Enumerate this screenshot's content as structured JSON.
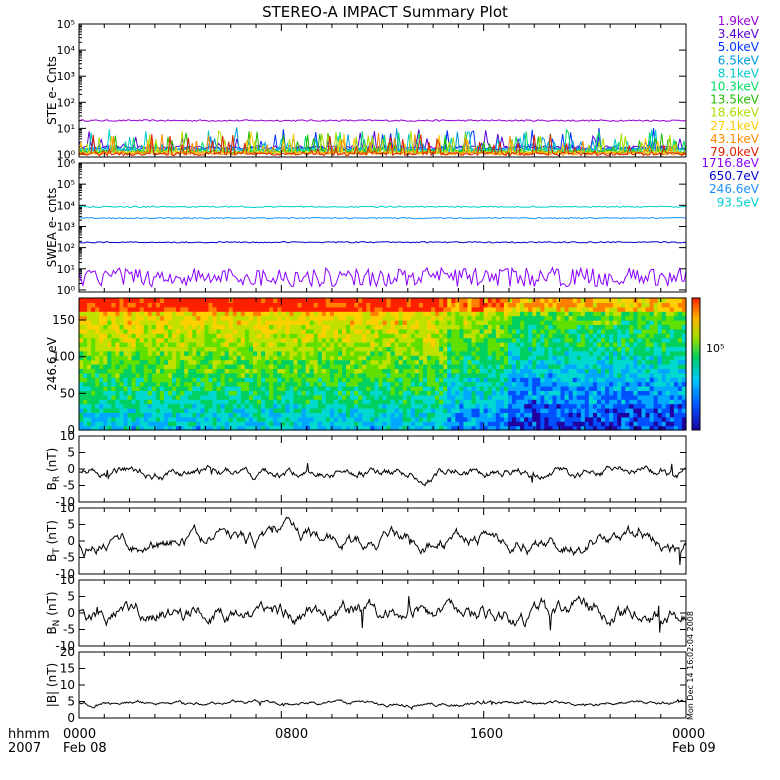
{
  "title": "STEREO-A IMPACT Summary Plot",
  "footer": {
    "row1_left": "hhmm",
    "row2_left": "2007",
    "ticks": [
      "0000",
      "0800",
      "1600",
      "0000"
    ],
    "dates": [
      "Feb 08",
      "",
      "",
      "Feb 09"
    ]
  },
  "side_stamp": "Mon Dec 14 16:02:04 2008",
  "chart_data": [
    {
      "type": "line",
      "ylabel": "STE e- Cnts",
      "yscale": "log",
      "ylim": [
        0.8,
        100000
      ],
      "ytick_labels": [
        "10⁵",
        "10⁴",
        "10³",
        "10²",
        "10¹",
        "10⁰"
      ],
      "series": [
        {
          "name": "1.9keV",
          "color": "#9400d3",
          "level": 20
        },
        {
          "name": "3.4keV",
          "color": "#5a00d8",
          "level": 1.8
        },
        {
          "name": "5.0keV",
          "color": "#0033ff",
          "level": 1.6
        },
        {
          "name": "6.5keV",
          "color": "#0099dd",
          "level": 1.5
        },
        {
          "name": "8.1keV",
          "color": "#00cccc",
          "level": 1.4
        },
        {
          "name": "10.3keV",
          "color": "#00dd66",
          "level": 1.3
        },
        {
          "name": "13.5keV",
          "color": "#22bb00",
          "level": 1.2
        },
        {
          "name": "18.6keV",
          "color": "#aadd00",
          "level": 1.15
        },
        {
          "name": "27.1keV",
          "color": "#ffcc00",
          "level": 1.1
        },
        {
          "name": "43.1keV",
          "color": "#ff8800",
          "level": 1.05
        },
        {
          "name": "79.0keV",
          "color": "#e02000",
          "level": 1.0
        }
      ]
    },
    {
      "type": "line",
      "ylabel": "SWEA e- cnts",
      "yscale": "log",
      "ylim": [
        0.8,
        1000000
      ],
      "ytick_labels": [
        "10⁶",
        "10⁵",
        "10⁴",
        "10³",
        "10²",
        "10¹",
        "10⁰"
      ],
      "series": [
        {
          "name": "1716.8eV",
          "color": "#8a00ff",
          "level": 4
        },
        {
          "name": "650.7eV",
          "color": "#0000cc",
          "level": 180
        },
        {
          "name": "246.6eV",
          "color": "#1e90ff",
          "level": 2500
        },
        {
          "name": "93.5eV",
          "color": "#00d0d0",
          "level": 8500
        }
      ]
    },
    {
      "type": "heatmap",
      "ylabel": "246.6 eV",
      "ylim": [
        0,
        180
      ],
      "yticks": [
        0,
        50,
        100,
        150
      ],
      "colorbar_label": "10⁵"
    },
    {
      "type": "line",
      "ylabel": "BR (nT)",
      "ylabel_main": "B",
      "ylabel_sub": "R",
      "ylabel_unit": " (nT)",
      "ylim": [
        -10,
        10
      ],
      "yticks": [
        10,
        5,
        0,
        -5,
        -10
      ],
      "color": "#000000",
      "mean": -1,
      "amplitude": 2
    },
    {
      "type": "line",
      "ylabel": "BT (nT)",
      "ylabel_main": "B",
      "ylabel_sub": "T",
      "ylabel_unit": " (nT)",
      "ylim": [
        -10,
        10
      ],
      "yticks": [
        10,
        5,
        0,
        -5,
        -10
      ],
      "color": "#000000",
      "mean": 0,
      "amplitude": 3
    },
    {
      "type": "line",
      "ylabel": "BN (nT)",
      "ylabel_main": "B",
      "ylabel_sub": "N",
      "ylabel_unit": " (nT)",
      "ylim": [
        -10,
        10
      ],
      "yticks": [
        10,
        5,
        0,
        -5,
        -10
      ],
      "color": "#000000",
      "mean": 0,
      "amplitude": 3.5
    },
    {
      "type": "line",
      "ylabel": "|B| (nT)",
      "ylabel_main": "|B| (nT)",
      "ylim": [
        0,
        20
      ],
      "yticks": [
        20,
        15,
        10,
        5,
        0
      ],
      "color": "#000000",
      "mean": 4.5,
      "amplitude": 0.8
    }
  ]
}
